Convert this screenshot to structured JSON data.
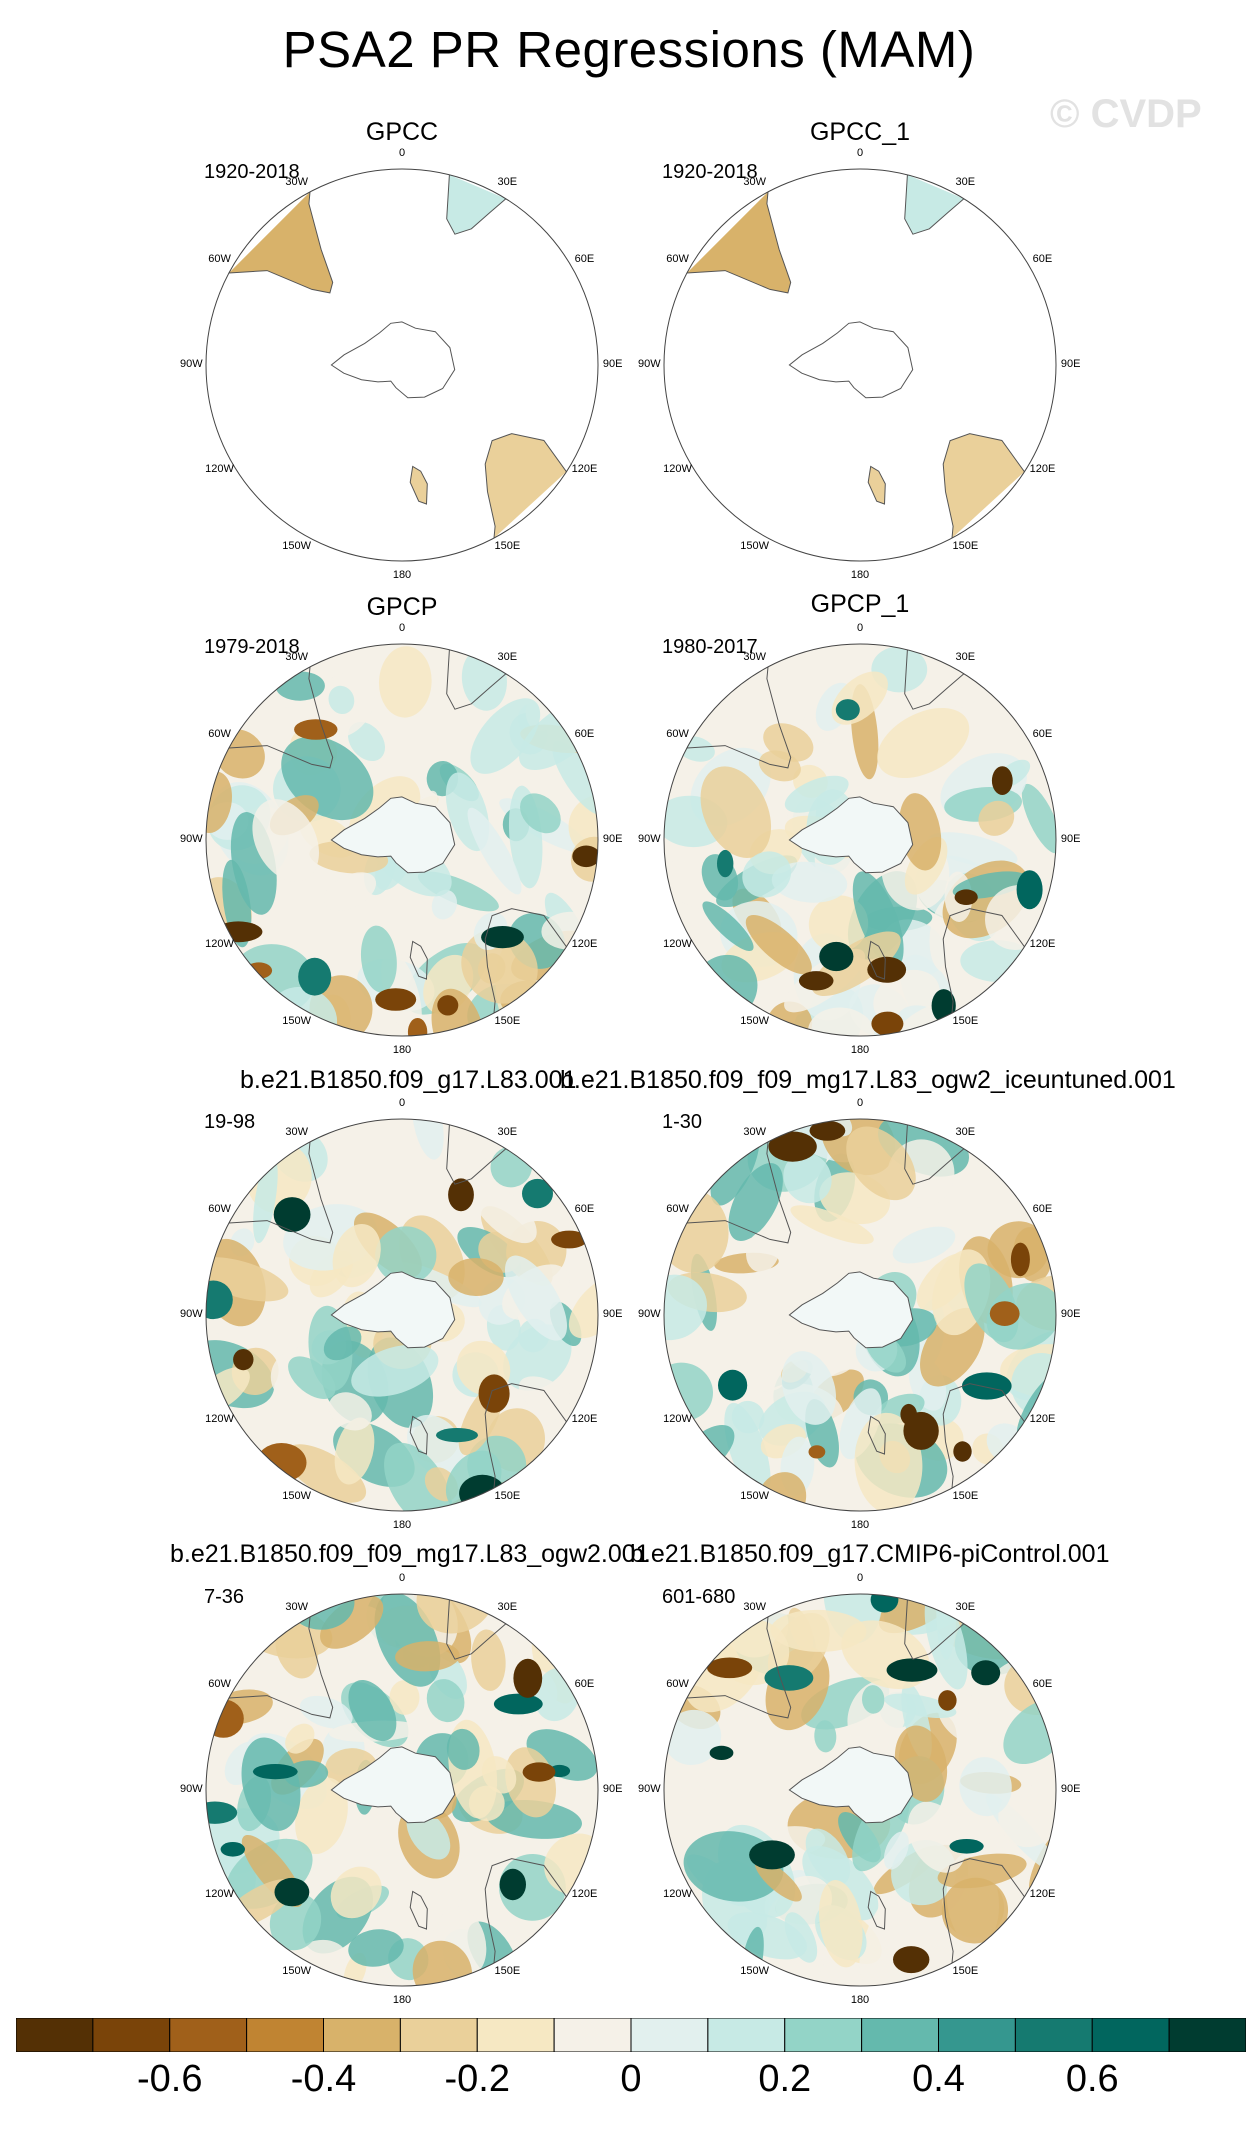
{
  "title": "PSA2 PR Regressions (MAM)",
  "watermark": "© CVDP",
  "longitude_labels": [
    "0",
    "30E",
    "60E",
    "90E",
    "120E",
    "150E",
    "180",
    "150W",
    "120W",
    "90W",
    "60W",
    "30W"
  ],
  "panels": [
    {
      "title": "GPCC",
      "period": "1920-2018",
      "coverage": "land"
    },
    {
      "title": "GPCC_1",
      "period": "1920-2018",
      "coverage": "land"
    },
    {
      "title": "GPCP",
      "period": "1979-2018",
      "coverage": "full"
    },
    {
      "title": "GPCP_1",
      "period": "1980-2017",
      "coverage": "full"
    },
    {
      "title": "b.e21.B1850.f09_g17.L83.001",
      "period": "19-98",
      "coverage": "full"
    },
    {
      "title": "b.e21.B1850.f09_f09_mg17.L83_ogw2_iceuntuned.001",
      "period": "1-30",
      "coverage": "full"
    },
    {
      "title": "b.e21.B1850.f09_f09_mg17.L83_ogw2.001",
      "period": "7-36",
      "coverage": "full"
    },
    {
      "title": "b.e21.B1850.f09_g17.CMIP6-piControl.001",
      "period": "601-680",
      "coverage": "full"
    }
  ],
  "colorbar": {
    "colors": [
      "#543005",
      "#7a4409",
      "#a0601a",
      "#c08432",
      "#d8b26a",
      "#ead09a",
      "#f6e8c3",
      "#f5f1e8",
      "#e2f0ee",
      "#c7eae5",
      "#93d4c7",
      "#64b9ad",
      "#35978f",
      "#157a70",
      "#01665e",
      "#003c30"
    ],
    "tick_labels": [
      "-0.6",
      "-0.4",
      "-0.2",
      "0",
      "0.2",
      "0.4",
      "0.6"
    ]
  }
}
